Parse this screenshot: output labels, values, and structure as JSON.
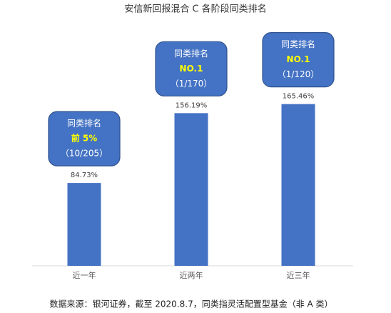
{
  "chart_data": {
    "type": "bar",
    "title": "安信新回报混合 C 各阶段同类排名",
    "categories": [
      "近一年",
      "近两年",
      "近三年"
    ],
    "values": [
      84.73,
      156.19,
      165.46
    ],
    "value_labels": [
      "84.73%",
      "156.19%",
      "165.46%"
    ],
    "color": "#4472c4",
    "ylim": [
      0,
      250
    ],
    "annotations": [
      {
        "title": "同类排名",
        "rank": "前 5%",
        "detail": "（10/205）"
      },
      {
        "title": "同类排名",
        "rank": "NO.1",
        "detail": "（1/170）"
      },
      {
        "title": "同类排名",
        "rank": "NO.1",
        "detail": "（1/120）"
      }
    ],
    "annotation_color": "#4472c4",
    "rank_color": "#ffff00",
    "note": "数据来源：银河证券，截至 2020.8.7，同类指灵活配置型基金（非 A 类）"
  }
}
